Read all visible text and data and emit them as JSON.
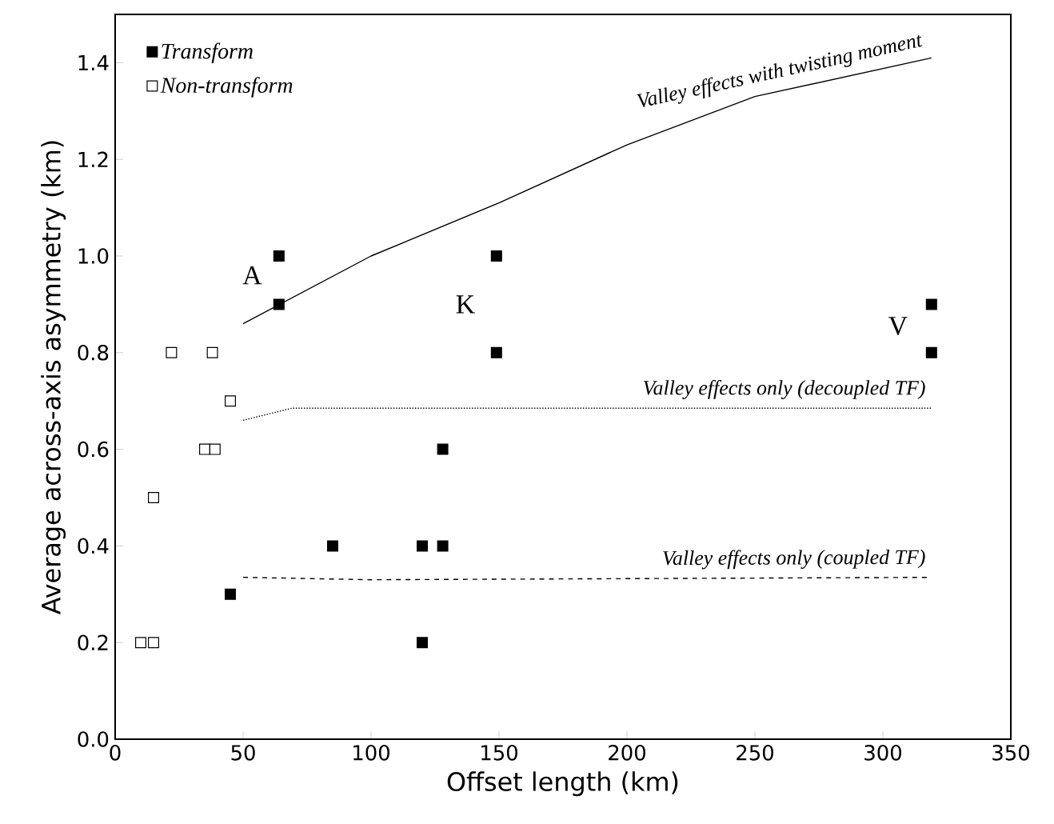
{
  "chart_data": {
    "type": "scatter",
    "xlabel": "Offset length (km)",
    "ylabel": "Average across-axis asymmetry (km)",
    "xlim": [
      0,
      350
    ],
    "ylim": [
      0,
      1.5
    ],
    "xticks": [
      0,
      50,
      100,
      150,
      200,
      250,
      300,
      350
    ],
    "yticks": [
      {
        "value": 0,
        "label": "0.0"
      },
      {
        "value": 0.2,
        "label": "0.2"
      },
      {
        "value": 0.4,
        "label": "0.4"
      },
      {
        "value": 0.6,
        "label": "0.6"
      },
      {
        "value": 0.8,
        "label": "0.8"
      },
      {
        "value": 1.0,
        "label": "1.0"
      },
      {
        "value": 1.2,
        "label": "1.2"
      },
      {
        "value": 1.4,
        "label": "1.4"
      }
    ],
    "legend": "top left",
    "grid": false,
    "series": [
      {
        "name": "*Transform*",
        "marker": "square",
        "color": "#000000",
        "x": [
          64,
          64,
          149,
          149,
          319,
          319,
          128,
          85,
          120,
          128,
          45,
          120
        ],
        "values": [
          1.0,
          0.9,
          1.0,
          0.8,
          0.9,
          0.8,
          0.6,
          0.4,
          0.4,
          0.4,
          0.3,
          0.2
        ]
      },
      {
        "name": "*Non-transform*",
        "marker": "square",
        "color": "#ffffff",
        "x": [
          10,
          15,
          15,
          22,
          38,
          45,
          35,
          39
        ],
        "values": [
          0.2,
          0.2,
          0.5,
          0.8,
          0.8,
          0.7,
          0.6,
          0.6
        ]
      },
      {
        "name": "*Valley effects with twisting moment*",
        "type": "line",
        "line_style": "solid",
        "color": "#000000",
        "x": [
          50,
          100,
          150,
          200,
          250,
          319
        ],
        "values": [
          0.86,
          1.0,
          1.11,
          1.23,
          1.33,
          1.41
        ]
      },
      {
        "name": "*Valley effects only (decoupled TF)*",
        "type": "line",
        "line_style": "dotted",
        "color": "#000000",
        "x": [
          50,
          69,
          319
        ],
        "values": [
          0.66,
          0.685,
          0.685
        ]
      },
      {
        "name": "*Valley effects only (coupled TF)*",
        "type": "line",
        "line_style": "dashed",
        "color": "#000000",
        "x": [
          50,
          100,
          319
        ],
        "values": [
          0.335,
          0.33,
          0.335
        ]
      }
    ],
    "annotations": [
      "A",
      "K",
      "V"
    ]
  }
}
